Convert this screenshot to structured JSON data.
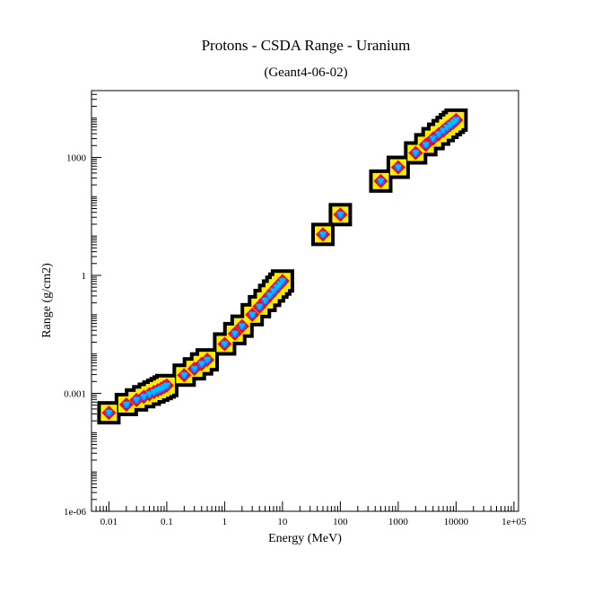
{
  "chart_data": {
    "type": "scatter",
    "title": "Protons - CSDA Range - Uranium",
    "subtitle": "(Geant4-06-02)",
    "xlabel": "Energy (MeV)",
    "ylabel": "Range (g/cm2)",
    "xscale": "log",
    "yscale": "log",
    "xlim": [
      0.005,
      120000
    ],
    "ylim": [
      1e-06,
      50000
    ],
    "xticks": [
      {
        "value": 0.01,
        "label": "0.01"
      },
      {
        "value": 0.1,
        "label": "0.1"
      },
      {
        "value": 1,
        "label": "1"
      },
      {
        "value": 10,
        "label": "10"
      },
      {
        "value": 100,
        "label": "100"
      },
      {
        "value": 1000,
        "label": "1000"
      },
      {
        "value": 10000,
        "label": "10000"
      },
      {
        "value": 100000,
        "label": "1e+05"
      }
    ],
    "yticks": [
      {
        "value": 1e-06,
        "label": "1e-06"
      },
      {
        "value": 0.001,
        "label": "0.001"
      },
      {
        "value": 1,
        "label": "1"
      },
      {
        "value": 1000,
        "label": "1000"
      }
    ],
    "grid": false,
    "colors": {
      "outer_box": "#000000",
      "band": "#ffee00",
      "diamond": "#ff0000",
      "circle": "#3a5bff",
      "triangle": "#00bfff"
    },
    "series": [
      {
        "x": [
          0.01,
          0.02,
          0.03,
          0.04,
          0.05,
          0.06,
          0.07,
          0.08,
          0.09,
          0.1,
          0.2,
          0.3,
          0.4,
          0.5,
          1,
          1.5,
          2,
          3,
          4,
          5,
          6,
          7,
          8,
          9,
          10,
          50,
          100,
          500,
          1000,
          2000,
          3000,
          4000,
          5000,
          6000,
          7000,
          8000,
          9000,
          10000
        ],
        "y": [
          0.00032,
          0.00052,
          0.00068,
          0.00082,
          0.00095,
          0.00108,
          0.0012,
          0.00132,
          0.00145,
          0.00158,
          0.0029,
          0.0042,
          0.0056,
          0.0071,
          0.018,
          0.033,
          0.051,
          0.1,
          0.16,
          0.23,
          0.31,
          0.4,
          0.5,
          0.6,
          0.72,
          11,
          35,
          250,
          560,
          1300,
          2100,
          3000,
          3900,
          4800,
          5800,
          6800,
          7800,
          8900
        ]
      }
    ]
  }
}
